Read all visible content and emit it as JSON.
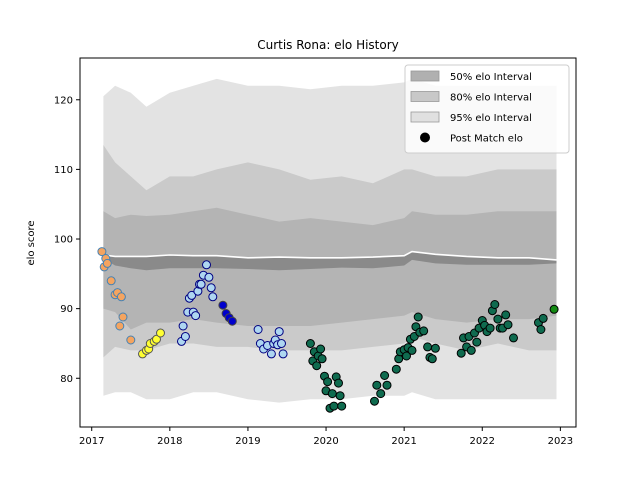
{
  "chart_data": {
    "type": "scatter",
    "title": "Curtis Rona: elo History",
    "xlabel": "",
    "ylabel": "elo score",
    "xlim": [
      2016.85,
      2023.2
    ],
    "ylim": [
      73,
      126
    ],
    "x_ticks": [
      2017,
      2018,
      2019,
      2020,
      2021,
      2022,
      2023
    ],
    "x_tick_labels": [
      "2017",
      "2018",
      "2019",
      "2020",
      "2021",
      "2022",
      "2023"
    ],
    "y_ticks": [
      80,
      90,
      100,
      110,
      120
    ],
    "y_tick_labels": [
      "80",
      "90",
      "100",
      "110",
      "120"
    ],
    "grid": false,
    "legend": {
      "placement": "top-right",
      "entries": [
        {
          "label": "50% elo Interval",
          "color": "#b0b0b0"
        },
        {
          "label": "80% elo Interval",
          "color": "#c8c8c8"
        },
        {
          "label": "95% elo Interval",
          "color": "#e0e0e0"
        },
        {
          "label": "Post Match elo",
          "color": "#000000"
        }
      ]
    },
    "bands": {
      "x": [
        2017.15,
        2017.3,
        2017.5,
        2017.7,
        2018.0,
        2018.3,
        2018.6,
        2019.0,
        2019.4,
        2019.8,
        2020.2,
        2020.6,
        2021.0,
        2021.1,
        2021.4,
        2021.8,
        2022.2,
        2022.6,
        2022.95
      ],
      "p95_upper": [
        120.5,
        122,
        121,
        119,
        121,
        122,
        123,
        122,
        122,
        121.5,
        122,
        122,
        122.5,
        123,
        122,
        122,
        122,
        122,
        122
      ],
      "p80_upper": [
        113.5,
        111,
        109,
        107,
        109,
        109,
        110,
        111,
        110,
        108.5,
        109,
        108,
        110,
        110,
        109,
        109,
        110,
        110,
        110
      ],
      "p50_upper": [
        104,
        103,
        103.5,
        103.3,
        103.5,
        104,
        104.5,
        103.5,
        102.5,
        103,
        102.5,
        102,
        103,
        104,
        103.5,
        103.5,
        104,
        104,
        104
      ],
      "white_upper": [
        97.7,
        97.5,
        97.5,
        97.5,
        97.7,
        97.6,
        97.6,
        97.3,
        97.4,
        97.3,
        97.3,
        97.4,
        97.6,
        98.2,
        97.8,
        97.5,
        97.3,
        97.3,
        97.0
      ],
      "white_lower": [
        97.2,
        96.2,
        95.8,
        95.5,
        95.8,
        95.8,
        95.8,
        95.7,
        95.5,
        95.7,
        95.9,
        95.8,
        96.2,
        97.0,
        96.5,
        96.3,
        96.3,
        96.3,
        96.5
      ],
      "p50_lower": [
        90,
        89.5,
        87,
        88,
        88,
        88.5,
        88,
        87.5,
        87.5,
        87.5,
        88,
        88.5,
        89,
        89.5,
        88.5,
        88,
        88.5,
        88.5,
        89
      ],
      "p80_lower": [
        83,
        84.5,
        84,
        84,
        85,
        85,
        84.5,
        84.5,
        84,
        84,
        84,
        84.5,
        85,
        86,
        85,
        84,
        85,
        84,
        84
      ],
      "p95_lower": [
        77.5,
        78,
        78,
        77,
        77,
        78,
        78,
        77,
        76.5,
        77,
        77,
        77.5,
        77.5,
        78,
        77,
        77,
        77,
        77,
        77
      ]
    },
    "series": [
      {
        "color": "#f4a460",
        "edge": "#4682b4",
        "x": [
          2017.13,
          2017.16,
          2017.18,
          2017.2,
          2017.25,
          2017.3,
          2017.33,
          2017.36,
          2017.38,
          2017.4,
          2017.5
        ],
        "values": [
          98.2,
          96.0,
          97.2,
          96.5,
          94.0,
          92.0,
          92.3,
          87.5,
          91.7,
          88.8,
          85.5
        ]
      },
      {
        "color": "#ffff33",
        "edge": "#555555",
        "x": [
          2017.65,
          2017.7,
          2017.73,
          2017.75,
          2017.8,
          2017.83,
          2017.88
        ],
        "values": [
          83.5,
          84.0,
          84.2,
          85.0,
          85.3,
          85.6,
          86.5
        ]
      },
      {
        "color": "#aed6f1",
        "edge": "#000080",
        "x": [
          2018.15,
          2018.17,
          2018.2,
          2018.23,
          2018.25,
          2018.28,
          2018.3,
          2018.33,
          2018.36,
          2018.38,
          2018.4,
          2018.43,
          2018.47,
          2018.5,
          2018.53,
          2018.55
        ],
        "values": [
          85.3,
          87.5,
          86.0,
          89.5,
          91.5,
          91.9,
          89.5,
          89.0,
          92.5,
          93.5,
          93.5,
          94.8,
          96.3,
          94.5,
          93.0,
          91.7
        ]
      },
      {
        "color": "#0000cd",
        "edge": "#444444",
        "x": [
          2018.68,
          2018.72,
          2018.76,
          2018.8
        ],
        "values": [
          90.5,
          89.3,
          88.7,
          88.2
        ]
      },
      {
        "color": "#aed6f1",
        "edge": "#000080",
        "x": [
          2019.13,
          2019.16,
          2019.2,
          2019.25,
          2019.3,
          2019.33,
          2019.35,
          2019.38,
          2019.4,
          2019.43,
          2019.45
        ],
        "values": [
          87.0,
          85.0,
          84.2,
          84.7,
          83.5,
          85.0,
          85.5,
          84.8,
          86.7,
          85.0,
          83.5
        ]
      },
      {
        "color": "#0f6b4f",
        "edge": "#000000",
        "x": [
          2019.8,
          2019.83,
          2019.85,
          2019.88,
          2019.9,
          2019.93,
          2019.95,
          2019.98,
          2020.0,
          2020.02,
          2020.05,
          2020.08,
          2020.1,
          2020.13,
          2020.16,
          2020.18,
          2020.2,
          2020.62,
          2020.65,
          2020.7,
          2020.75,
          2020.78,
          2020.9,
          2020.93,
          2020.95,
          2021.0,
          2021.03,
          2021.05,
          2021.08,
          2021.1,
          2021.13,
          2021.15,
          2021.18,
          2021.2,
          2021.25,
          2021.3,
          2021.33,
          2021.36,
          2021.4,
          2021.73,
          2021.76,
          2021.8,
          2021.83,
          2021.86,
          2021.9,
          2021.93,
          2021.96,
          2022.0,
          2022.03,
          2022.06,
          2022.1,
          2022.13,
          2022.16,
          2022.2,
          2022.23,
          2022.26,
          2022.3,
          2022.33,
          2022.4,
          2022.72,
          2022.75,
          2022.78
        ],
        "values": [
          85.0,
          82.5,
          83.8,
          81.8,
          83.2,
          84.2,
          82.8,
          80.3,
          78.2,
          79.5,
          75.7,
          77.8,
          76.0,
          80.2,
          79.3,
          77.5,
          76.0,
          76.7,
          79.0,
          77.8,
          80.4,
          79.0,
          81.3,
          82.8,
          83.8,
          84.1,
          83.2,
          84.4,
          85.6,
          84.0,
          86.0,
          87.4,
          88.8,
          86.6,
          86.8,
          84.5,
          83.0,
          82.8,
          84.3,
          83.6,
          85.8,
          84.5,
          86.0,
          84.0,
          86.5,
          85.2,
          87.2,
          88.3,
          87.6,
          86.7,
          87.2,
          89.7,
          90.6,
          88.5,
          87.2,
          87.2,
          89.1,
          87.7,
          85.8,
          88.0,
          87.0,
          88.6
        ]
      },
      {
        "color": "#138a13",
        "edge": "#000000",
        "x": [
          2022.92
        ],
        "values": [
          89.9
        ]
      }
    ]
  }
}
